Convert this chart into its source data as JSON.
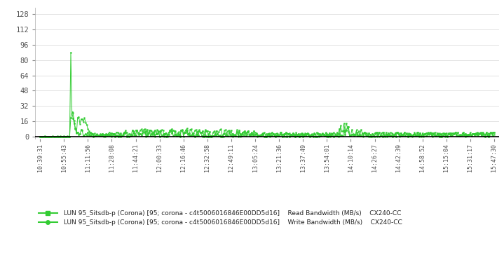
{
  "bg_color": "#ffffff",
  "plot_bg_color": "#ffffff",
  "grid_color": "#cccccc",
  "line_color": "#33cc33",
  "yticks": [
    0,
    16,
    32,
    48,
    64,
    80,
    96,
    112,
    128
  ],
  "ylim": [
    -2,
    134
  ],
  "xlim": [
    -0.2,
    19.2
  ],
  "xtick_labels": [
    "10:39:31",
    "10:55:43",
    "11:11:56",
    "11:28:08",
    "11:44:21",
    "12:00:33",
    "12:16:46",
    "12:32:58",
    "12:49:11",
    "13:05:24",
    "13:21:36",
    "13:37:49",
    "13:54:01",
    "14:10:14",
    "14:26:27",
    "14:42:39",
    "14:58:52",
    "15:15:04",
    "15:31:17",
    "15:47:30"
  ],
  "legend": [
    {
      "label": "LUN 95_Sitsdb-p (Corona) [95; corona - c4t5006016846E00DD5d16]",
      "metric": "Read Bandwidth (MB/s)",
      "device": "CX240-CC"
    },
    {
      "label": "LUN 95_Sitsdb-p (Corona) [95; corona - c4t5006016846E00DD5d16]",
      "metric": "Write Bandwidth (MB/s)",
      "device": "CX240-CC"
    }
  ]
}
